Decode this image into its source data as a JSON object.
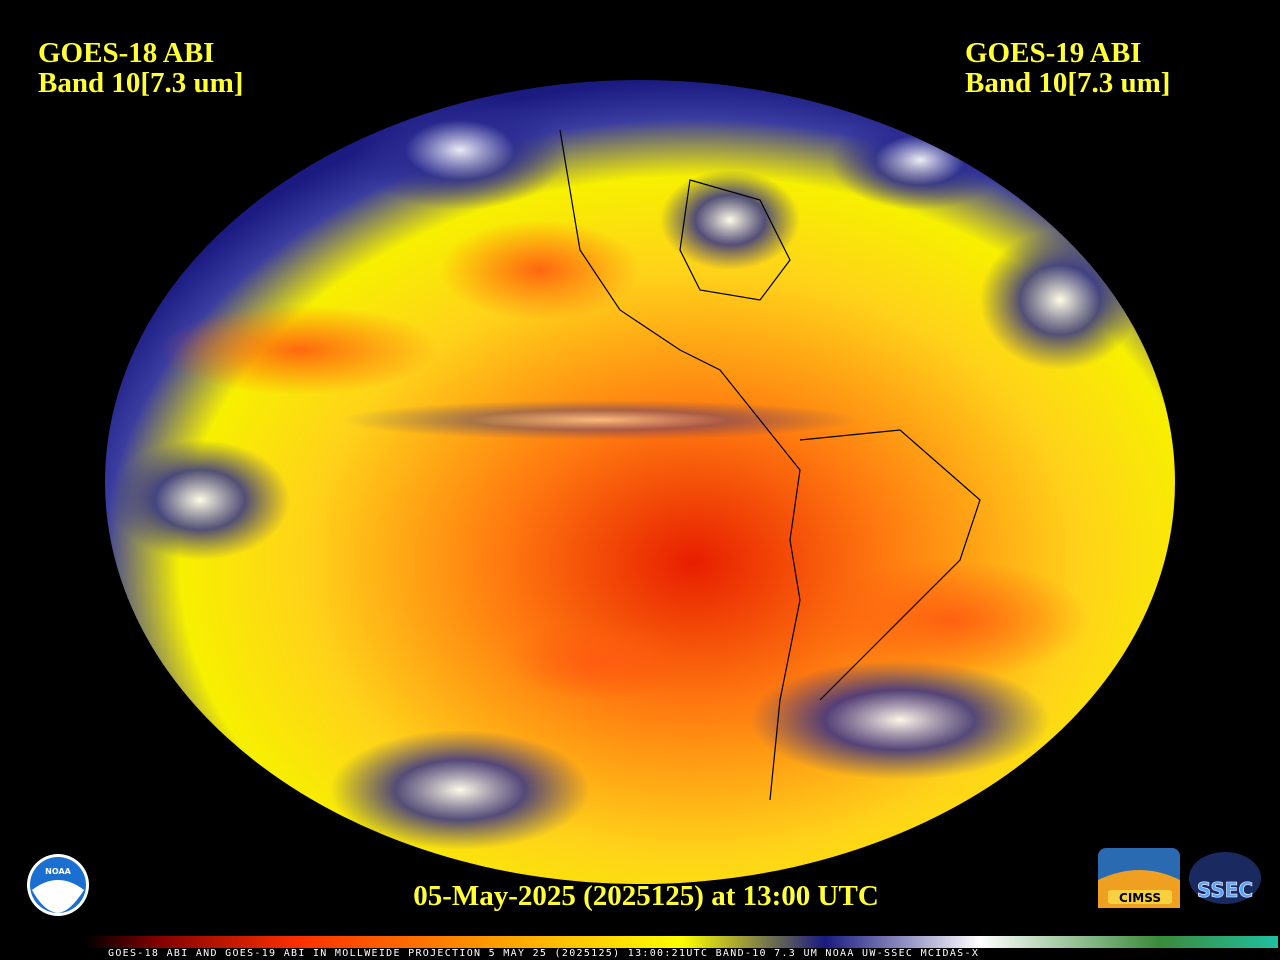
{
  "header": {
    "left": {
      "satellite": "GOES-18 ABI",
      "band": "Band 10[7.3 um]"
    },
    "right": {
      "satellite": "GOES-19 ABI",
      "band": "Band 10[7.3 um]"
    }
  },
  "timestamp": "05-May-2025 (2025125) at 13:00 UTC",
  "logos": {
    "noaa": "NOAA",
    "cimss": "CIMSS",
    "ssec": "SSEC"
  },
  "footer": "GOES-18 ABI AND GOES-19 ABI IN MOLLWEIDE PROJECTION 5 MAY 25 (2025125) 13:00:21UTC BAND-10 7.3 UM NOAA UW-SSEC MCIDAS-X"
}
